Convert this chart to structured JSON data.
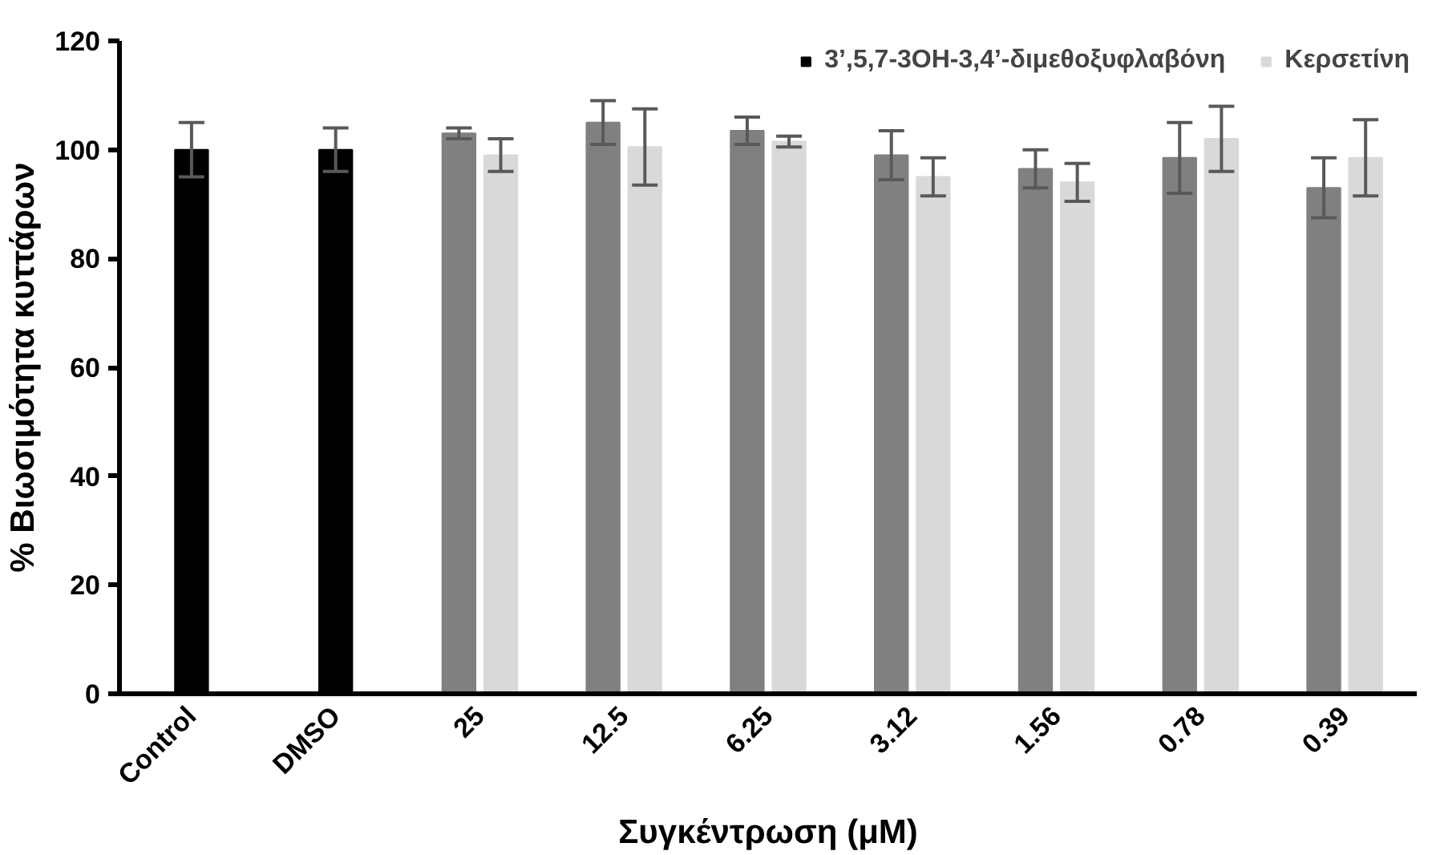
{
  "chart_data": {
    "type": "bar",
    "xlabel": "Συγκέντρωση (μM)",
    "ylabel": "% Βιωσιμότητα κυττάρων",
    "categories": [
      "Control",
      "DMSO",
      "25",
      "12.5",
      "6.25",
      "3.12",
      "1.56",
      "0.78",
      "0.39"
    ],
    "series": [
      {
        "name": "3’,5,7-3OH-3,4’-διμεθοξυφλαβόνη",
        "color": "#000000",
        "colors": [
          "#000000",
          "#000000",
          "#808080",
          "#808080",
          "#808080",
          "#808080",
          "#808080",
          "#808080",
          "#808080"
        ],
        "values": [
          100,
          100,
          103,
          105,
          103.5,
          99,
          96.5,
          98.5,
          93
        ],
        "errors": [
          5,
          4,
          1,
          4,
          2.5,
          4.5,
          3.5,
          6.5,
          5.5
        ]
      },
      {
        "name": "Κερσετίνη",
        "color": "#d9d9d9",
        "values": [
          null,
          null,
          99,
          100.5,
          101.5,
          95,
          94,
          102,
          98.5
        ],
        "errors": [
          null,
          null,
          3,
          7,
          1,
          3.5,
          3.5,
          6,
          7
        ]
      }
    ],
    "ylim": [
      0,
      120
    ],
    "yticks": [
      0,
      20,
      40,
      60,
      80,
      100,
      120
    ],
    "grid": false,
    "legend": "top right"
  }
}
